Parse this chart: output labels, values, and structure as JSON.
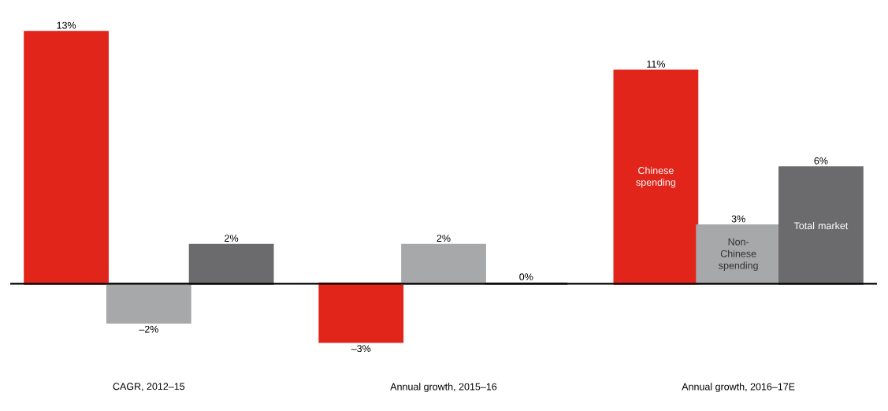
{
  "chart_data": {
    "type": "bar",
    "categories": [
      "CAGR, 2012–15",
      "Annual growth, 2015–16",
      "Annual growth, 2016–17E"
    ],
    "series": [
      {
        "name": "Chinese spending",
        "color": "#e1251b",
        "values": [
          13,
          -3,
          11
        ],
        "value_labels": [
          "13%",
          "–3%",
          "11%"
        ]
      },
      {
        "name": "Non-Chinese spending",
        "color": "#a7a8aa",
        "values": [
          -2,
          2,
          3
        ],
        "value_labels": [
          "–2%",
          "2%",
          "3%"
        ]
      },
      {
        "name": "Total market",
        "color": "#6b6b6d",
        "values": [
          2,
          0,
          6
        ],
        "value_labels": [
          "2%",
          "0%",
          "6%"
        ]
      }
    ]
  }
}
